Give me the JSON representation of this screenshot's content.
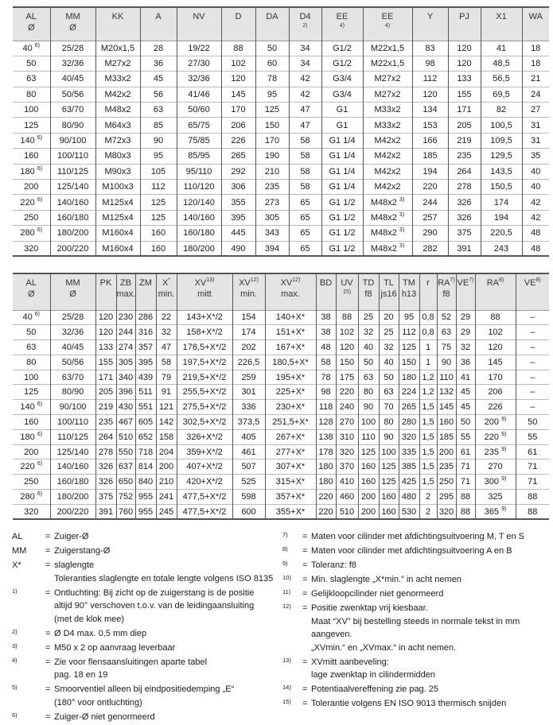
{
  "table1": {
    "headers": [
      {
        "l1": "AL",
        "l2": "Ø"
      },
      {
        "l1": "MM",
        "l2": "Ø"
      },
      {
        "l1": "KK"
      },
      {
        "l1": "A"
      },
      {
        "l1": "NV"
      },
      {
        "l1": "D"
      },
      {
        "l1": "DA"
      },
      {
        "l1": "D4",
        "note": "2)"
      },
      {
        "l1": "EE",
        "note": "4)"
      },
      {
        "l1": "EE",
        "note": "4)"
      },
      {
        "l1": "Y"
      },
      {
        "l1": "PJ"
      },
      {
        "l1": "X1"
      },
      {
        "l1": "WA"
      }
    ],
    "rows": [
      [
        {
          "v": "40",
          "sup": "6)"
        },
        "25/28",
        "M20x1,5",
        "28",
        "19/22",
        "88",
        "50",
        "34",
        "G1/2",
        "M22x1,5",
        "83",
        "120",
        "41",
        "18"
      ],
      [
        "50",
        "32/36",
        "M27x2",
        "36",
        "27/30",
        "102",
        "60",
        "34",
        "G1/2",
        "M22x1,5",
        "98",
        "120",
        "48,5",
        "18"
      ],
      [
        "63",
        "40/45",
        "M33x2",
        "45",
        "32/36",
        "120",
        "78",
        "42",
        "G3/4",
        "M27x2",
        "112",
        "133",
        "56,5",
        "21"
      ],
      [
        "80",
        "50/56",
        "M42x2",
        "56",
        "41/46",
        "145",
        "95",
        "42",
        "G3/4",
        "M27x2",
        "120",
        "155",
        "69,5",
        "24"
      ],
      [
        "100",
        "63/70",
        "M48x2",
        "63",
        "50/60",
        "170",
        "125",
        "47",
        "G1",
        "M33x2",
        "134",
        "171",
        "82",
        "27"
      ],
      [
        "125",
        "80/90",
        "M64x3",
        "85",
        "65/75",
        "206",
        "150",
        "47",
        "G1",
        "M33x2",
        "153",
        "205",
        "100,5",
        "31"
      ],
      [
        {
          "v": "140",
          "sup": "6)"
        },
        "90/100",
        "M72x3",
        "90",
        "75/85",
        "226",
        "170",
        "58",
        "G1 1/4",
        "M42x2",
        "166",
        "219",
        "109,5",
        "31"
      ],
      [
        "160",
        "100/110",
        "M80x3",
        "95",
        "85/95",
        "265",
        "190",
        "58",
        "G1 1/4",
        "M42x2",
        "185",
        "235",
        "129,5",
        "35"
      ],
      [
        {
          "v": "180",
          "sup": "6)"
        },
        "110/125",
        "M90x3",
        "105",
        "95/110",
        "292",
        "210",
        "58",
        "G1 1/4",
        "M42x2",
        "194",
        "264",
        "143,5",
        "40"
      ],
      [
        "200",
        "125/140",
        "M100x3",
        "112",
        "110/120",
        "306",
        "235",
        "58",
        "G1 1/4",
        "M42x2",
        "220",
        "278",
        "150,5",
        "40"
      ],
      [
        {
          "v": "220",
          "sup": "6)"
        },
        "140/160",
        "M125x4",
        "125",
        "120/140",
        "355",
        "273",
        "65",
        "G1 1/2",
        {
          "v": "M48x2",
          "sup": "3)"
        },
        "244",
        "326",
        "174",
        "42"
      ],
      [
        "250",
        "160/180",
        "M125x4",
        "125",
        "140/160",
        "395",
        "305",
        "65",
        "G1 1/2",
        {
          "v": "M48x2",
          "sup": "3)"
        },
        "257",
        "326",
        "194",
        "42"
      ],
      [
        {
          "v": "280",
          "sup": "6)"
        },
        "180/200",
        "M160x4",
        "160",
        "160/180",
        "445",
        "343",
        "65",
        "G1 1/2",
        {
          "v": "M48x2",
          "sup": "3)"
        },
        "290",
        "375",
        "220,5",
        "48"
      ],
      [
        "320",
        "200/220",
        "M160x4",
        "160",
        "180/200",
        "490",
        "394",
        "65",
        "G1 1/2",
        {
          "v": "M48x2",
          "sup": "3)"
        },
        "282",
        "391",
        "243",
        "48"
      ]
    ]
  },
  "table2": {
    "headers": [
      {
        "l1": "AL",
        "l2": "Ø"
      },
      {
        "l1": "MM",
        "l2": "Ø"
      },
      {
        "l1": "PK"
      },
      {
        "l1": "ZB",
        "l2": "max."
      },
      {
        "l1": "ZM"
      },
      {
        "l1": "X",
        "sup": "*",
        "l2": "min."
      },
      {
        "l1": "XV",
        "sup": "13)",
        "l2": "mitt"
      },
      {
        "l1": "XV",
        "sup": "12)",
        "l2": "min."
      },
      {
        "l1": "XV",
        "sup": "12)",
        "l2": "max."
      },
      {
        "l1": "BD"
      },
      {
        "l1": "UV",
        "note": "15)"
      },
      {
        "l1": "TD",
        "l2": "f8"
      },
      {
        "l1": "TL",
        "l2": "js16"
      },
      {
        "l1": "TM",
        "l2": "h13"
      },
      {
        "l1": "r"
      },
      {
        "l1": "RA",
        "sup": "7)",
        "l2": "f8"
      },
      {
        "l1": "VE",
        "sup": "7)"
      },
      {
        "l1": "RA",
        "sup": "8)"
      },
      {
        "l1": "VE",
        "sup": "8)"
      }
    ],
    "rows": [
      [
        {
          "v": "40",
          "sup": "6)"
        },
        "25/28",
        "120",
        "230",
        "286",
        "22",
        "143+X*/2",
        "154",
        "140+X*",
        "38",
        "88",
        "25",
        "20",
        "95",
        "0,8",
        "52",
        "29",
        "88",
        "–"
      ],
      [
        "50",
        "32/36",
        "120",
        "244",
        "316",
        "32",
        "158+X*/2",
        "174",
        "151+X*",
        "38",
        "102",
        "32",
        "25",
        "112",
        "0,8",
        "63",
        "29",
        "102",
        "–"
      ],
      [
        "63",
        "40/45",
        "133",
        "274",
        "357",
        "47",
        "178,5+X*/2",
        "202",
        "167+X*",
        "48",
        "120",
        "40",
        "32",
        "125",
        "1",
        "75",
        "32",
        "120",
        "–"
      ],
      [
        "80",
        "50/56",
        "155",
        "305",
        "395",
        "58",
        "197,5+X*/2",
        "226,5",
        "180,5+X*",
        "58",
        "150",
        "50",
        "40",
        "150",
        "1",
        "90",
        "36",
        "145",
        "–"
      ],
      [
        "100",
        "63/70",
        "171",
        "340",
        "439",
        "79",
        "219,5+X*/2",
        "259",
        "195+X*",
        "78",
        "175",
        "63",
        "50",
        "180",
        "1,2",
        "110",
        "41",
        "170",
        "–"
      ],
      [
        "125",
        "80/90",
        "205",
        "396",
        "511",
        "91",
        "255,5+X*/2",
        "301",
        "225+X*",
        "98",
        "220",
        "80",
        "63",
        "224",
        "1,2",
        "132",
        "45",
        "206",
        "–"
      ],
      [
        {
          "v": "140",
          "sup": "6)"
        },
        "90/100",
        "219",
        "430",
        "551",
        "121",
        "275,5+X*/2",
        "336",
        "230+X*",
        "118",
        "240",
        "90",
        "70",
        "265",
        "1,5",
        "145",
        "45",
        "226",
        "–"
      ],
      [
        "160",
        "100/110",
        "235",
        "467",
        "605",
        "142",
        "302,5+X*/2",
        "373,5",
        "251,5+X*",
        "128",
        "270",
        "100",
        "80",
        "280",
        "1,5",
        "160",
        "50",
        {
          "v": "200",
          "sup": "9)"
        },
        "50"
      ],
      [
        {
          "v": "180",
          "sup": "6)"
        },
        "110/125",
        "264",
        "510",
        "652",
        "158",
        "326+X*/2",
        "405",
        "267+X*",
        "138",
        "310",
        "110",
        "90",
        "320",
        "1,5",
        "185",
        "55",
        {
          "v": "220",
          "sup": "9)"
        },
        "55"
      ],
      [
        "200",
        "125/140",
        "278",
        "550",
        "718",
        "204",
        "359+X*/2",
        "461",
        "277+X*",
        "178",
        "320",
        "125",
        "100",
        "335",
        "1,5",
        "200",
        "61",
        {
          "v": "235",
          "sup": "9)"
        },
        "61"
      ],
      [
        {
          "v": "220",
          "sup": "6)"
        },
        "140/160",
        "326",
        "637",
        "814",
        "200",
        "407+X*/2",
        "507",
        "307+X*",
        "180",
        "370",
        "160",
        "125",
        "385",
        "1,5",
        "235",
        "71",
        "270",
        "71"
      ],
      [
        "250",
        "160/180",
        "326",
        "650",
        "840",
        "210",
        "420+X*/2",
        "525",
        "315+X*",
        "180",
        "410",
        "160",
        "125",
        "425",
        "1,5",
        "250",
        "71",
        {
          "v": "300",
          "sup": "9)"
        },
        "71"
      ],
      [
        {
          "v": "280",
          "sup": "6)"
        },
        "180/200",
        "375",
        "752",
        "955",
        "241",
        "477,5+X*/2",
        "598",
        "357+X*",
        "220",
        "460",
        "200",
        "160",
        "480",
        "2",
        "295",
        "88",
        "325",
        "88"
      ],
      [
        "320",
        "200/220",
        "391",
        "760",
        "955",
        "245",
        "477,5+X*/2",
        "600",
        "355+X*",
        "220",
        "510",
        "200",
        "160",
        "530",
        "2",
        "320",
        "88",
        {
          "v": "365",
          "sup": "9)"
        },
        "88"
      ]
    ]
  },
  "footnotes": {
    "left": [
      {
        "key": "AL",
        "lines": [
          "Zuiger-Ø"
        ]
      },
      {
        "key": "MM",
        "lines": [
          "Zuigerstang-Ø"
        ]
      },
      {
        "key": "X*",
        "lines": [
          "slaglengte",
          "Toleranties slaglengte en totale lengte volgens ISO 8135"
        ]
      },
      {
        "key": "1)",
        "num": true,
        "lines": [
          "Ontluchting: Bij zicht op de zuigerstang is de positie",
          "altijd 90° verschoven t.o.v. van de leidingaansluiting",
          "(met de klok mee)"
        ]
      },
      {
        "key": "2)",
        "num": true,
        "lines": [
          "Ø D4 max. 0,5 mm diep"
        ]
      },
      {
        "key": "3)",
        "num": true,
        "lines": [
          "M50 x 2 op aanvraag leverbaar"
        ]
      },
      {
        "key": "4)",
        "num": true,
        "lines": [
          "Zie voor flensaansluitingen aparte tabel",
          "pag. 18 en 19"
        ]
      },
      {
        "key": "5)",
        "num": true,
        "lines": [
          "Smoorventiel alleen bij eindpositiedemping „E“",
          "(180° voor ontluchting)"
        ]
      },
      {
        "key": "6)",
        "num": true,
        "lines": [
          "Zuiger-Ø niet genormeerd"
        ]
      }
    ],
    "right": [
      {
        "key": "7)",
        "num": true,
        "lines": [
          "Maten voor cilinder met afdichtingsuitvoering M, T en S"
        ]
      },
      {
        "key": "8)",
        "num": true,
        "lines": [
          "Maten voor cilinder met afdichtingsuitvoering A en B"
        ]
      },
      {
        "key": "9)",
        "num": true,
        "lines": [
          "Toleranz: f8"
        ]
      },
      {
        "key": "10)",
        "num": true,
        "lines": [
          "Min. slaglengte „X*min.“ in acht nemen"
        ]
      },
      {
        "key": "11)",
        "num": true,
        "lines": [
          "Gelijkloopcilinder niet genormeerd"
        ]
      },
      {
        "key": "12)",
        "num": true,
        "lines": [
          "Positie zwenktap vrij kiesbaar.",
          "Maat “XV” bij bestelling steeds in normale tekst in mm",
          "aangeven.",
          "„XVmin.“ en „XVmax.“ in acht nemen."
        ]
      },
      {
        "key": "13)",
        "num": true,
        "lines": [
          "XVmitt aanbeveling:",
          "lage zwenktap in cilindermidden"
        ]
      },
      {
        "key": "14)",
        "num": true,
        "lines": [
          "Potentiaalvereffening zie pag. 25"
        ]
      },
      {
        "key": "15)",
        "num": true,
        "lines": [
          "Tolerantie volgens EN ISO 9013 thermisch snijden"
        ]
      }
    ],
    "equals": "="
  }
}
